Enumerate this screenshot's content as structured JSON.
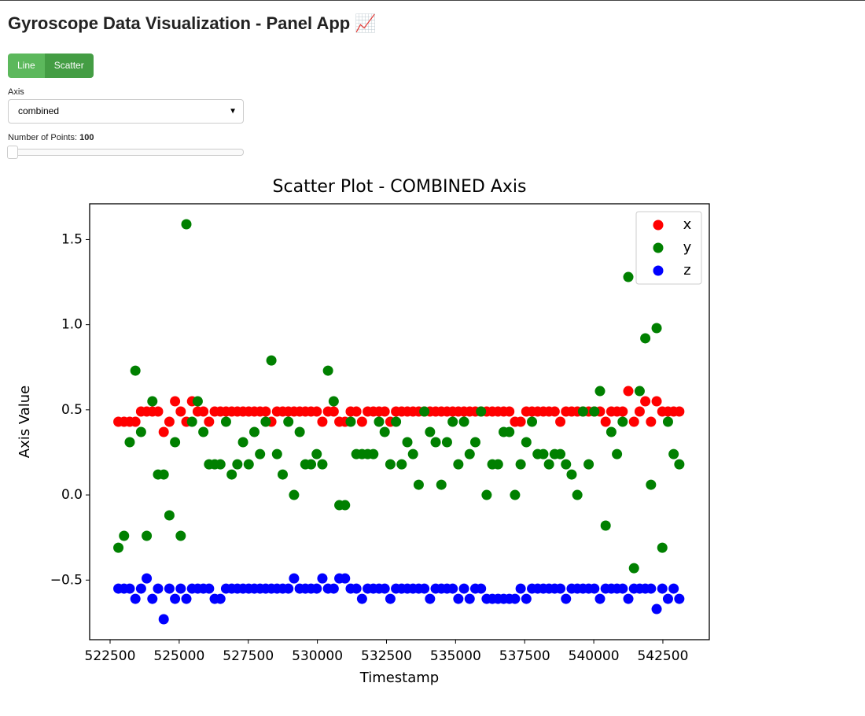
{
  "header": {
    "title": "Gyroscope Data Visualization - Panel App 📈"
  },
  "controls": {
    "plot_type": {
      "options": [
        "Line",
        "Scatter"
      ],
      "active": "Scatter"
    },
    "axis": {
      "label": "Axis",
      "value": "combined"
    },
    "points": {
      "label": "Number of Points:",
      "value": 100
    }
  },
  "chart_data": {
    "type": "scatter",
    "title": "Scatter Plot - COMBINED Axis",
    "x_label": "Timestamp",
    "y_label": "Axis Value",
    "xlim": [
      521760,
      544180
    ],
    "ylim": [
      -0.85,
      1.71
    ],
    "xticks": [
      522500,
      525000,
      527500,
      530000,
      532500,
      535000,
      537500,
      540000,
      542500
    ],
    "yticks": [
      {
        "value": -0.5,
        "label": "−0.5"
      },
      {
        "value": 0.0,
        "label": "0.0"
      },
      0.5,
      {
        "value": 1.0,
        "label": "1.0"
      },
      1.5
    ],
    "legend": "upper right",
    "x": [
      522800,
      523005,
      523210,
      523415,
      523620,
      523825,
      524030,
      524235,
      524440,
      524645,
      524850,
      525055,
      525260,
      525465,
      525670,
      525875,
      526080,
      526285,
      526490,
      526695,
      526900,
      527105,
      527310,
      527515,
      527720,
      527925,
      528130,
      528335,
      528540,
      528745,
      528950,
      529155,
      529360,
      529565,
      529770,
      529975,
      530180,
      530385,
      530590,
      530795,
      531000,
      531205,
      531410,
      531615,
      531820,
      532025,
      532230,
      532435,
      532640,
      532845,
      533050,
      533255,
      533460,
      533665,
      533870,
      534075,
      534280,
      534485,
      534690,
      534895,
      535100,
      535305,
      535510,
      535715,
      535920,
      536125,
      536330,
      536535,
      536740,
      536945,
      537150,
      537355,
      537560,
      537765,
      537970,
      538175,
      538380,
      538585,
      538790,
      538995,
      539200,
      539405,
      539610,
      539815,
      540020,
      540225,
      540430,
      540635,
      540840,
      541045,
      541250,
      541455,
      541660,
      541865,
      542070,
      542275,
      542480,
      542685,
      542890,
      543095
    ],
    "series": [
      {
        "name": "x",
        "color": "#ff0000",
        "values": [
          0.43,
          0.43,
          0.43,
          0.43,
          0.49,
          0.49,
          0.49,
          0.49,
          0.37,
          0.43,
          0.55,
          0.49,
          0.43,
          0.55,
          0.49,
          0.49,
          0.43,
          0.49,
          0.49,
          0.49,
          0.49,
          0.49,
          0.49,
          0.49,
          0.49,
          0.49,
          0.49,
          0.43,
          0.49,
          0.49,
          0.49,
          0.49,
          0.49,
          0.49,
          0.49,
          0.49,
          0.43,
          0.49,
          0.49,
          0.43,
          0.43,
          0.49,
          0.49,
          0.43,
          0.49,
          0.49,
          0.49,
          0.49,
          0.43,
          0.49,
          0.49,
          0.49,
          0.49,
          0.49,
          0.49,
          0.49,
          0.49,
          0.49,
          0.49,
          0.49,
          0.49,
          0.49,
          0.49,
          0.49,
          0.49,
          0.49,
          0.49,
          0.49,
          0.49,
          0.49,
          0.43,
          0.43,
          0.49,
          0.49,
          0.49,
          0.49,
          0.49,
          0.49,
          0.43,
          0.49,
          0.49,
          0.49,
          0.49,
          0.49,
          0.49,
          0.49,
          0.43,
          0.49,
          0.49,
          0.49,
          0.61,
          0.43,
          0.49,
          0.55,
          0.43,
          0.55,
          0.49,
          0.49,
          0.49,
          0.49
        ]
      },
      {
        "name": "y",
        "color": "#008000",
        "values": [
          -0.31,
          -0.24,
          0.31,
          0.73,
          0.37,
          -0.24,
          0.55,
          0.12,
          0.12,
          -0.12,
          0.31,
          -0.24,
          1.59,
          0.43,
          0.55,
          0.37,
          0.18,
          0.18,
          0.18,
          0.43,
          0.12,
          0.18,
          0.31,
          0.18,
          0.37,
          0.24,
          0.43,
          0.79,
          0.24,
          0.12,
          0.43,
          0.0,
          0.37,
          0.18,
          0.18,
          0.24,
          0.18,
          0.73,
          0.55,
          -0.06,
          -0.06,
          0.43,
          0.24,
          0.24,
          0.24,
          0.24,
          0.43,
          0.37,
          0.18,
          0.43,
          0.18,
          0.31,
          0.24,
          0.06,
          0.49,
          0.37,
          0.31,
          0.06,
          0.31,
          0.43,
          0.18,
          0.43,
          0.24,
          0.31,
          0.49,
          0.0,
          0.18,
          0.18,
          0.37,
          0.37,
          0.0,
          0.18,
          0.31,
          0.43,
          0.24,
          0.24,
          0.18,
          0.24,
          0.24,
          0.18,
          0.12,
          0.0,
          0.49,
          0.18,
          0.49,
          0.61,
          -0.18,
          0.37,
          0.24,
          0.43,
          1.28,
          -0.43,
          0.61,
          0.92,
          0.06,
          0.98,
          -0.31,
          0.43,
          0.24,
          0.18
        ]
      },
      {
        "name": "z",
        "color": "#0000ff",
        "values": [
          -0.55,
          -0.55,
          -0.55,
          -0.61,
          -0.55,
          -0.49,
          -0.61,
          -0.55,
          -0.73,
          -0.55,
          -0.61,
          -0.55,
          -0.61,
          -0.55,
          -0.55,
          -0.55,
          -0.55,
          -0.61,
          -0.61,
          -0.55,
          -0.55,
          -0.55,
          -0.55,
          -0.55,
          -0.55,
          -0.55,
          -0.55,
          -0.55,
          -0.55,
          -0.55,
          -0.55,
          -0.49,
          -0.55,
          -0.55,
          -0.55,
          -0.55,
          -0.49,
          -0.55,
          -0.55,
          -0.49,
          -0.49,
          -0.55,
          -0.55,
          -0.61,
          -0.55,
          -0.55,
          -0.55,
          -0.55,
          -0.61,
          -0.55,
          -0.55,
          -0.55,
          -0.55,
          -0.55,
          -0.55,
          -0.61,
          -0.55,
          -0.55,
          -0.55,
          -0.55,
          -0.61,
          -0.55,
          -0.61,
          -0.55,
          -0.55,
          -0.61,
          -0.61,
          -0.61,
          -0.61,
          -0.61,
          -0.61,
          -0.55,
          -0.61,
          -0.55,
          -0.55,
          -0.55,
          -0.55,
          -0.55,
          -0.55,
          -0.61,
          -0.55,
          -0.55,
          -0.55,
          -0.55,
          -0.55,
          -0.61,
          -0.55,
          -0.55,
          -0.55,
          -0.55,
          -0.61,
          -0.55,
          -0.55,
          -0.55,
          -0.55,
          -0.67,
          -0.55,
          -0.61,
          -0.55,
          -0.61
        ]
      }
    ]
  }
}
